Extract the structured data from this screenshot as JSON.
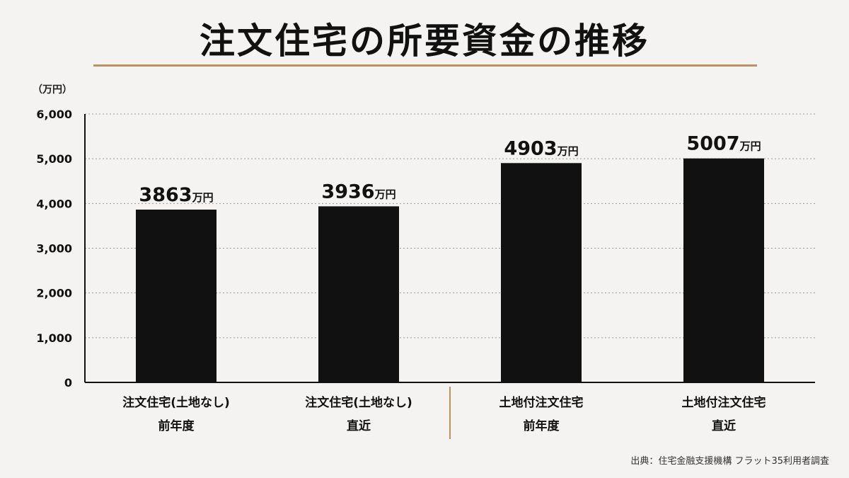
{
  "title": "注文住宅の所要資金の推移",
  "unit_label": "（万円）",
  "source": "出典：住宅金融支援機構 フラット35利用者調査",
  "colors": {
    "bar": "#111111",
    "accent": "#b8955e",
    "grid": "#9a9a9a",
    "background": "#f4f3f1"
  },
  "chart_data": {
    "type": "bar",
    "title": "注文住宅の所要資金の推移",
    "ylabel": "（万円）",
    "xlabel": "",
    "ylim": [
      0,
      6000
    ],
    "yticks": [
      0,
      1000,
      2000,
      3000,
      4000,
      5000,
      6000
    ],
    "ytick_labels": [
      "0",
      "1,000",
      "2,000",
      "3,000",
      "4,000",
      "5,000",
      "6,000"
    ],
    "grid": true,
    "categories": [
      [
        "注文住宅(土地なし)",
        "前年度"
      ],
      [
        "注文住宅(土地なし)",
        "直近"
      ],
      [
        "土地付注文住宅",
        "前年度"
      ],
      [
        "土地付注文住宅",
        "直近"
      ]
    ],
    "values": [
      3863,
      3936,
      4903,
      5007
    ],
    "value_unit": "万円"
  }
}
